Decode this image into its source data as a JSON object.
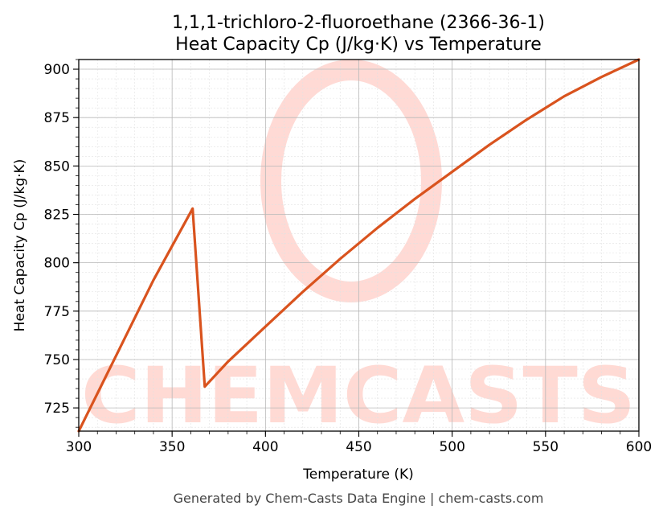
{
  "chart_data": {
    "type": "line",
    "title_line1": "1,1,1-trichloro-2-fluoroethane (2366-36-1)",
    "title_line2": "Heat Capacity Cp (J/kg·K) vs Temperature",
    "xlabel": "Temperature (K)",
    "ylabel": "Heat Capacity Cp (J/kg·K)",
    "xlim": [
      300,
      600
    ],
    "ylim": [
      713,
      905
    ],
    "xticks": [
      300,
      350,
      400,
      450,
      500,
      550,
      600
    ],
    "yticks": [
      725,
      750,
      775,
      800,
      825,
      850,
      875,
      900
    ],
    "grid": true,
    "line_color": "#d9531e",
    "series": [
      {
        "x": [
          300,
          320,
          340,
          361,
          367.5,
          380,
          400,
          420,
          440,
          460,
          480,
          500,
          520,
          540,
          560,
          580,
          600
        ],
        "y": [
          713,
          752,
          791,
          828,
          736,
          749,
          767,
          785,
          802,
          818,
          833,
          847,
          861,
          874,
          886,
          896,
          905
        ]
      }
    ]
  },
  "watermark": "CHEMCASTS",
  "footer": "Generated by Chem-Casts Data Engine | chem-casts.com"
}
